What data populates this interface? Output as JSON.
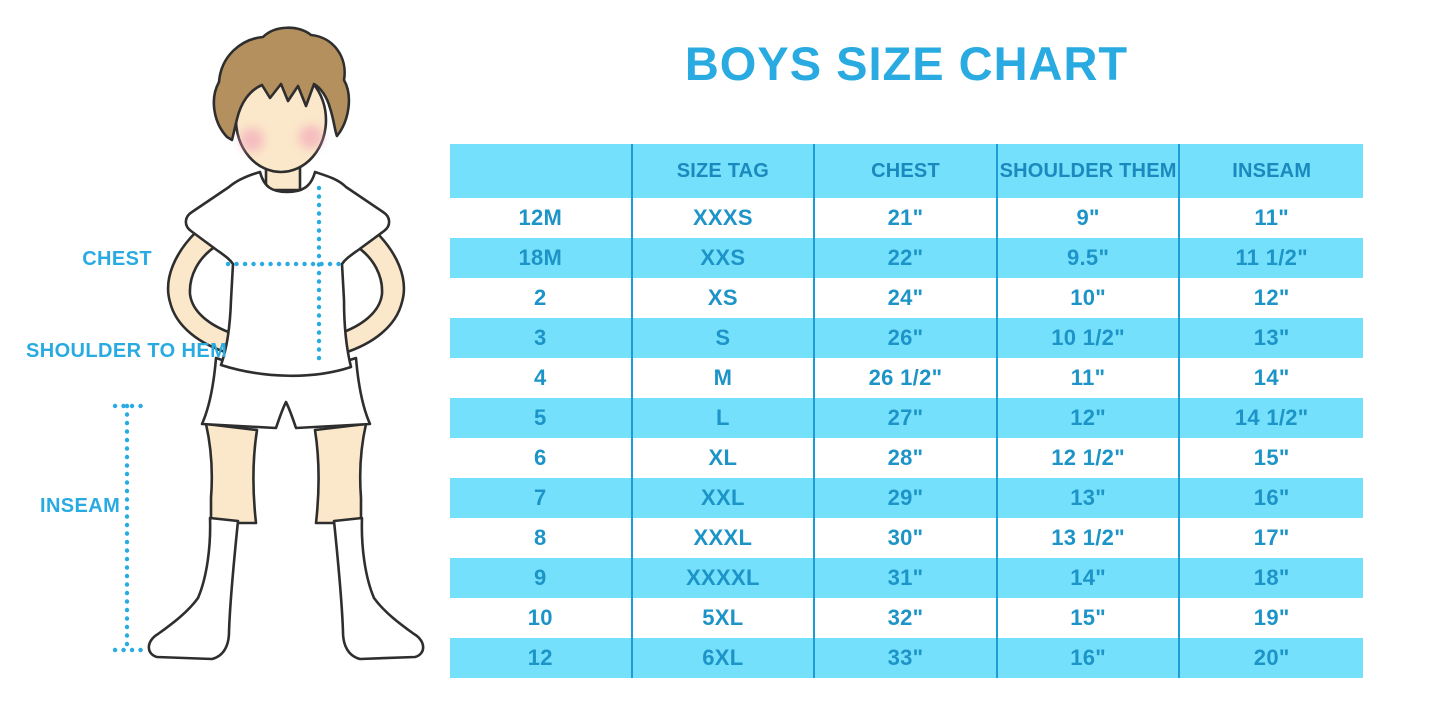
{
  "chart_data": {
    "type": "table",
    "title": "BOYS SIZE CHART",
    "columns": [
      "",
      "SIZE TAG",
      "CHEST",
      "SHOULDER THEM",
      "INSEAM"
    ],
    "rows": [
      [
        "12M",
        "XXXS",
        "21\"",
        "9\"",
        "11\""
      ],
      [
        "18M",
        "XXS",
        "22\"",
        "9.5\"",
        "11 1/2\""
      ],
      [
        "2",
        "XS",
        "24\"",
        "10\"",
        "12\""
      ],
      [
        "3",
        "S",
        "26\"",
        "10 1/2\"",
        "13\""
      ],
      [
        "4",
        "M",
        "26 1/2\"",
        "11\"",
        "14\""
      ],
      [
        "5",
        "L",
        "27\"",
        "12\"",
        "14 1/2\""
      ],
      [
        "6",
        "XL",
        "28\"",
        "12 1/2\"",
        "15\""
      ],
      [
        "7",
        "XXL",
        "29\"",
        "13\"",
        "16\""
      ],
      [
        "8",
        "XXXL",
        "30\"",
        "13 1/2\"",
        "17\""
      ],
      [
        "9",
        "XXXXL",
        "31\"",
        "14\"",
        "18\""
      ],
      [
        "10",
        "5XL",
        "32\"",
        "15\"",
        "19\""
      ],
      [
        "12",
        "6XL",
        "33\"",
        "16\"",
        "20\""
      ]
    ]
  },
  "figure": {
    "labels": {
      "chest": "CHEST",
      "shoulder_to_hem": "SHOULDER TO HEM",
      "inseam": "INSEAM"
    }
  },
  "colors": {
    "accent_blue": "#29ABE2",
    "table_text_blue": "#1D94C8",
    "header_text_blue": "#1A89BD",
    "band_cyan": "#75E0FB",
    "grid_line_blue": "#1F9CD7",
    "skin": "#FBE7C9",
    "hair_brown": "#B5905F",
    "cheek_pink": "#F2A8BC",
    "outline": "#2E2E2E"
  }
}
